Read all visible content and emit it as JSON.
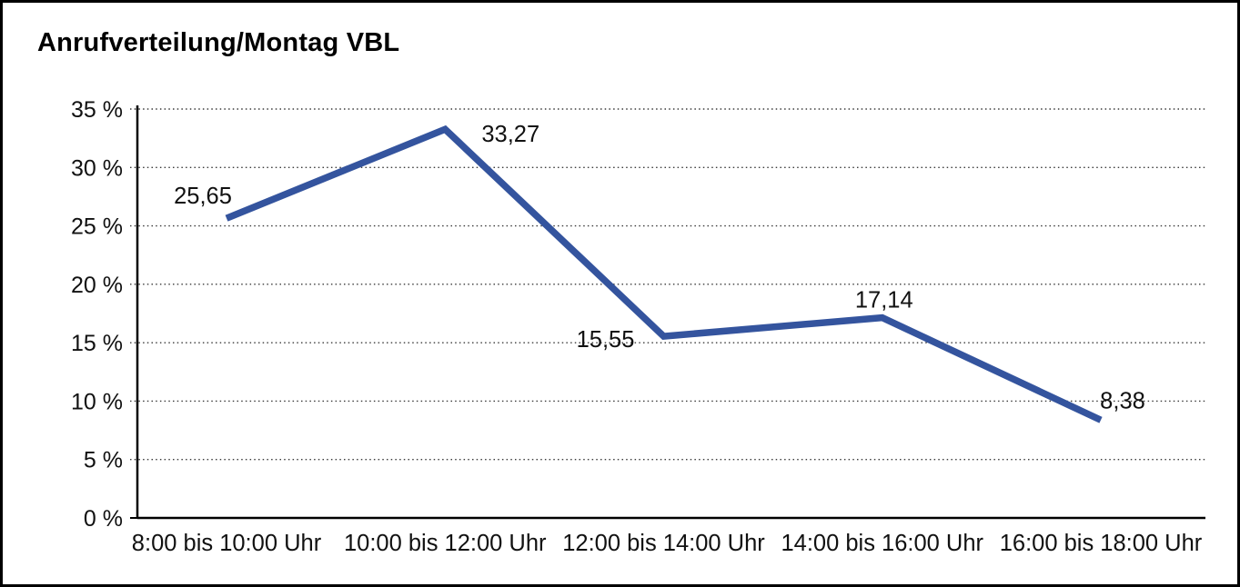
{
  "title": "Anrufverteilung/Montag VBL",
  "chart_data": {
    "type": "line",
    "title": "Anrufverteilung/Montag VBL",
    "categories": [
      "8:00 bis 10:00 Uhr",
      "10:00 bis 12:00 Uhr",
      "12:00 bis 14:00 Uhr",
      "14:00 bis 16:00 Uhr",
      "16:00 bis 18:00 Uhr"
    ],
    "values": [
      25.65,
      33.27,
      15.55,
      17.14,
      8.38
    ],
    "data_labels": [
      "25,65",
      "33,27",
      "15,55",
      "17,14",
      "8,38"
    ],
    "xlabel": "",
    "ylabel": "",
    "ylim": [
      0,
      35
    ],
    "y_tick_step": 5,
    "y_tick_labels": [
      "0 %",
      "5 %",
      "10 %",
      "15 %",
      "20 %",
      "25 %",
      "30 %",
      "35 %"
    ],
    "grid": "horizontal-dotted",
    "legend": "none"
  },
  "colors": {
    "line": "#34549E",
    "grid": "#3a3a3a",
    "axis": "#000000",
    "text": "#111111",
    "background": "#ffffff",
    "frame_border": "#000000"
  }
}
